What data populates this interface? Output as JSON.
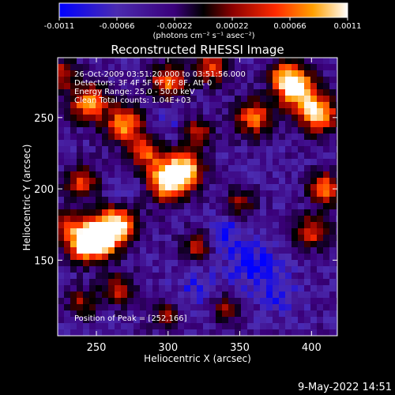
{
  "chart_data": {
    "type": "heatmap",
    "title": "Reconstructed RHESSI Image",
    "xlabel": "Heliocentric X (arcsec)",
    "ylabel": "Heliocentric Y (arcsec)",
    "xlim": [
      223,
      418
    ],
    "ylim": [
      97,
      292
    ],
    "x_ticks": [
      250,
      300,
      350,
      400
    ],
    "y_ticks": [
      150,
      200,
      250
    ],
    "x_tick_labels": [
      "250",
      "300",
      "350",
      "400"
    ],
    "y_tick_labels": [
      "150",
      "200",
      "250"
    ],
    "colorbar": {
      "range": [
        -0.0011,
        0.0011
      ],
      "tick_values": [
        -0.0011,
        -0.00066,
        -0.00022,
        0.00022,
        0.00066,
        0.0011
      ],
      "tick_labels": [
        "-0.0011",
        "-0.00066",
        "-0.00022",
        "0.00022",
        "0.00066",
        "0.0011"
      ],
      "units_label": "(photons cm⁻² s⁻¹ asec⁻²)",
      "colormap": [
        "#0000ff",
        "#4b2bb0",
        "#3a007a",
        "#000000",
        "#8a0000",
        "#ff2a00",
        "#ffa000",
        "#ffffff"
      ]
    },
    "annotations": [
      "26-Oct-2009 03:51:20.000 to 03:51:56.000",
      "Detectors: 3F 4F 5F 6F 7F 8F, Att 0",
      "Energy Range: 25.0 - 50.0 keV",
      "Clean     Total counts: 1.04E+03"
    ],
    "peak_label": "Position of Peak = [252,166]",
    "peak": [
      252,
      166
    ],
    "grid": false
  },
  "footer": {
    "timestamp": "9-May-2022 14:51"
  }
}
